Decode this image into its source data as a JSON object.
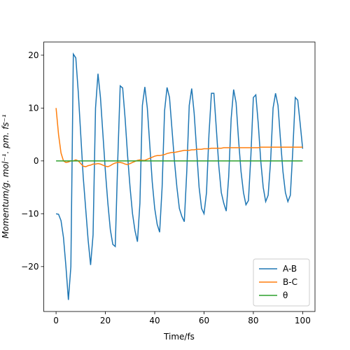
{
  "chart_data": {
    "type": "line",
    "xlabel": "Time/fs",
    "ylabel": "Momentum/g. mol⁻¹. pm. fs⁻¹",
    "x": [
      0,
      1,
      2,
      3,
      4,
      5,
      6,
      7,
      8,
      9,
      10,
      11,
      12,
      13,
      14,
      15,
      16,
      17,
      18,
      19,
      20,
      21,
      22,
      23,
      24,
      25,
      26,
      27,
      28,
      29,
      30,
      31,
      32,
      33,
      34,
      35,
      36,
      37,
      38,
      39,
      40,
      41,
      42,
      43,
      44,
      45,
      46,
      47,
      48,
      49,
      50,
      51,
      52,
      53,
      54,
      55,
      56,
      57,
      58,
      59,
      60,
      61,
      62,
      63,
      64,
      65,
      66,
      67,
      68,
      69,
      70,
      71,
      72,
      73,
      74,
      75,
      76,
      77,
      78,
      79,
      80,
      81,
      82,
      83,
      84,
      85,
      86,
      87,
      88,
      89,
      90,
      91,
      92,
      93,
      94,
      95,
      96,
      97,
      98,
      99,
      100
    ],
    "series": [
      {
        "name": "A-B",
        "color": "#1f77b4",
        "values": [
          -10,
          -10.1,
          -11.3,
          -14.5,
          -20,
          -26.3,
          -20,
          20.2,
          19.5,
          13,
          5,
          -3,
          -9,
          -15,
          -19.7,
          -14,
          10,
          16.5,
          12,
          5,
          -2,
          -8,
          -13,
          -15.8,
          -16.2,
          0,
          14.2,
          13.8,
          8,
          1,
          -5,
          -10,
          -13.2,
          -15.3,
          -8,
          10.5,
          14,
          10,
          3,
          -4,
          -9,
          -12,
          -13.5,
          -5,
          9.5,
          13.9,
          12,
          6,
          0,
          -5,
          -9,
          -10.5,
          -11.5,
          -2,
          10.5,
          13.7,
          9,
          2,
          -5,
          -9,
          -10,
          -6,
          5,
          12.8,
          12.8,
          6,
          -1,
          -6,
          -8,
          -9.5,
          -3,
          8,
          13.5,
          11,
          4,
          -2,
          -6,
          -8.3,
          -7.5,
          1,
          12,
          12.5,
          7,
          0,
          -5,
          -7.7,
          -6.5,
          0,
          10,
          12.8,
          10.5,
          4,
          -2,
          -6,
          -7.7,
          -6.5,
          2,
          12,
          11.5,
          7,
          2.3
        ]
      },
      {
        "name": "B-C",
        "color": "#ff7f0e",
        "values": [
          10,
          5,
          1.5,
          0,
          -0.3,
          -0.2,
          0,
          0,
          0.2,
          0,
          -0.5,
          -1,
          -1.1,
          -0.9,
          -0.8,
          -0.6,
          -0.6,
          -0.5,
          -0.6,
          -0.8,
          -1,
          -1.1,
          -0.9,
          -0.6,
          -0.4,
          -0.3,
          -0.3,
          -0.4,
          -0.6,
          -0.7,
          -0.5,
          -0.3,
          -0.1,
          0.1,
          0.2,
          0.1,
          0.1,
          0.3,
          0.5,
          0.7,
          0.9,
          1,
          1,
          1.1,
          1.2,
          1.4,
          1.5,
          1.6,
          1.6,
          1.7,
          1.8,
          1.9,
          2,
          2,
          2,
          2.1,
          2.1,
          2.2,
          2.2,
          2.2,
          2.3,
          2.3,
          2.3,
          2.4,
          2.4,
          2.4,
          2.4,
          2.4,
          2.5,
          2.5,
          2.5,
          2.5,
          2.5,
          2.5,
          2.5,
          2.5,
          2.5,
          2.5,
          2.5,
          2.5,
          2.5,
          2.5,
          2.5,
          2.6,
          2.6,
          2.6,
          2.6,
          2.6,
          2.6,
          2.6,
          2.6,
          2.6,
          2.6,
          2.6,
          2.6,
          2.6,
          2.6,
          2.6,
          2.6,
          2.6,
          2.6
        ]
      },
      {
        "name": "θ",
        "color": "#2ca02c",
        "values": [
          0,
          0,
          0,
          0,
          0,
          0,
          0,
          0,
          0,
          0,
          0,
          0,
          0,
          0,
          0,
          0,
          0,
          0,
          0,
          0,
          0,
          0,
          0,
          0,
          0,
          0,
          0,
          0,
          0,
          0,
          0,
          0,
          0,
          0,
          0,
          0,
          0,
          0,
          0,
          0,
          0,
          0,
          0,
          0,
          0,
          0,
          0,
          0,
          0,
          0,
          0,
          0,
          0,
          0,
          0,
          0,
          0,
          0,
          0,
          0,
          0,
          0,
          0,
          0,
          0,
          0,
          0,
          0,
          0,
          0,
          0,
          0,
          0,
          0,
          0,
          0,
          0,
          0,
          0,
          0,
          0,
          0,
          0,
          0,
          0,
          0,
          0,
          0,
          0,
          0,
          0,
          0,
          0,
          0,
          0,
          0,
          0,
          0,
          0,
          0,
          0
        ]
      }
    ],
    "xlim": [
      -5,
      105
    ],
    "ylim": [
      -28.5,
      22.5
    ],
    "xticks": [
      0,
      20,
      40,
      60,
      80,
      100
    ],
    "yticks": [
      {
        "value": -20,
        "label": "−20"
      },
      {
        "value": -10,
        "label": "−10"
      },
      0,
      10,
      20
    ],
    "legend": "lower right"
  }
}
